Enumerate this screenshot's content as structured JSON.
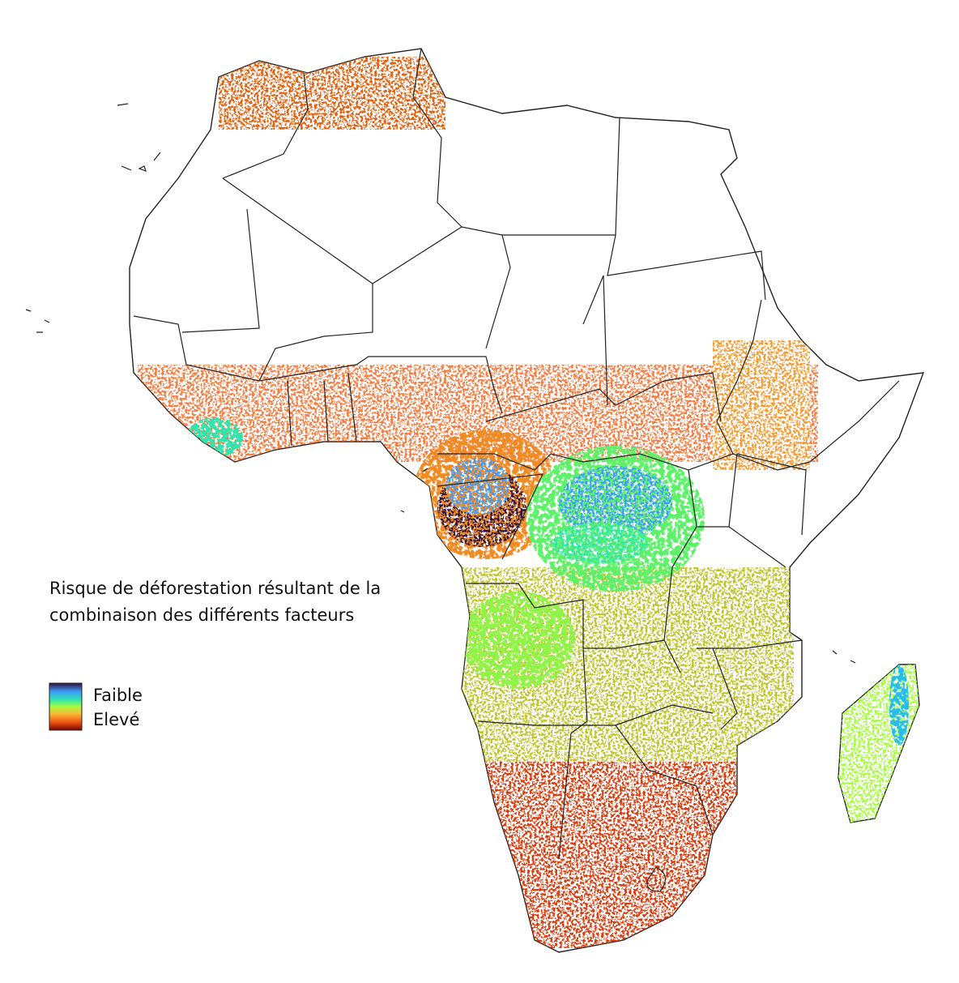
{
  "map": {
    "title_lines": [
      "Risque de déforestation résultant de la",
      "combinaison des différents facteurs"
    ],
    "legend": {
      "high_label": "Faible",
      "low_label": "Elevé"
    }
  }
}
